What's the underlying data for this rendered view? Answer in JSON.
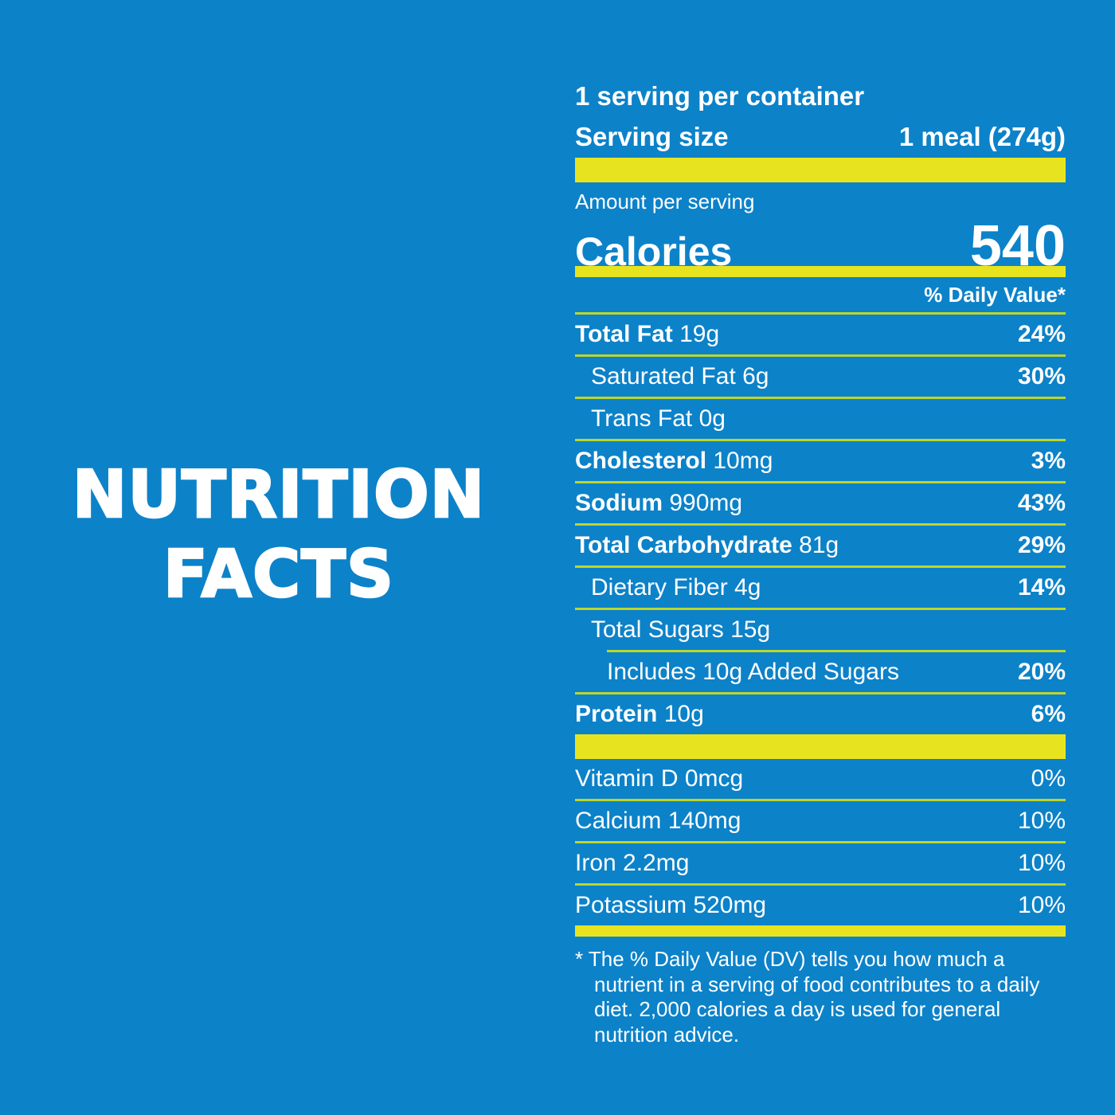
{
  "colors": {
    "background": "#0c82c9",
    "bar_yellow": "#e7e41f",
    "divider_green": "#bdd62c",
    "text": "#ffffff"
  },
  "title": {
    "line1": "NUTRITION",
    "line2": "FACTS"
  },
  "panel": {
    "servings_per_container": "1 serving per container",
    "serving_size_label": "Serving size",
    "serving_size_value": "1 meal (274g)",
    "amount_per_serving": "Amount per serving",
    "calories_label": "Calories",
    "calories_value": "540",
    "daily_value_header": "% Daily Value*",
    "nutrients": [
      {
        "name": "Total Fat",
        "amount": "19g",
        "dv": "24%",
        "bold": true,
        "indent": 0,
        "divider_indent": false
      },
      {
        "name": "Saturated Fat",
        "amount": "6g",
        "dv": "30%",
        "bold": false,
        "indent": 1,
        "divider_indent": false
      },
      {
        "name": "Trans Fat",
        "amount": "0g",
        "dv": "",
        "bold": false,
        "indent": 1,
        "divider_indent": false
      },
      {
        "name": "Cholesterol",
        "amount": "10mg",
        "dv": "3%",
        "bold": true,
        "indent": 0,
        "divider_indent": false
      },
      {
        "name": "Sodium",
        "amount": "990mg",
        "dv": "43%",
        "bold": true,
        "indent": 0,
        "divider_indent": false
      },
      {
        "name": "Total Carbohydrate",
        "amount": "81g",
        "dv": "29%",
        "bold": true,
        "indent": 0,
        "divider_indent": false
      },
      {
        "name": "Dietary Fiber",
        "amount": "4g",
        "dv": "14%",
        "bold": false,
        "indent": 1,
        "divider_indent": false
      },
      {
        "name": "Total Sugars",
        "amount": "15g",
        "dv": "",
        "bold": false,
        "indent": 1,
        "divider_indent": false
      },
      {
        "name": "Includes 10g Added Sugars",
        "amount": "",
        "dv": "20%",
        "bold": false,
        "indent": 2,
        "divider_indent": true
      },
      {
        "name": "Protein",
        "amount": "10g",
        "dv": "6%",
        "bold": true,
        "indent": 0,
        "divider_indent": false
      }
    ],
    "vitamins": [
      {
        "name": "Vitamin D 0mcg",
        "dv": "0%"
      },
      {
        "name": "Calcium 140mg",
        "dv": "10%"
      },
      {
        "name": "Iron 2.2mg",
        "dv": "10%"
      },
      {
        "name": "Potassium 520mg",
        "dv": "10%"
      }
    ],
    "footnote": "* The % Daily Value (DV) tells you how much a nutrient in a serving of food contributes to a daily diet. 2,000 calories a day is used for general nutrition advice."
  }
}
